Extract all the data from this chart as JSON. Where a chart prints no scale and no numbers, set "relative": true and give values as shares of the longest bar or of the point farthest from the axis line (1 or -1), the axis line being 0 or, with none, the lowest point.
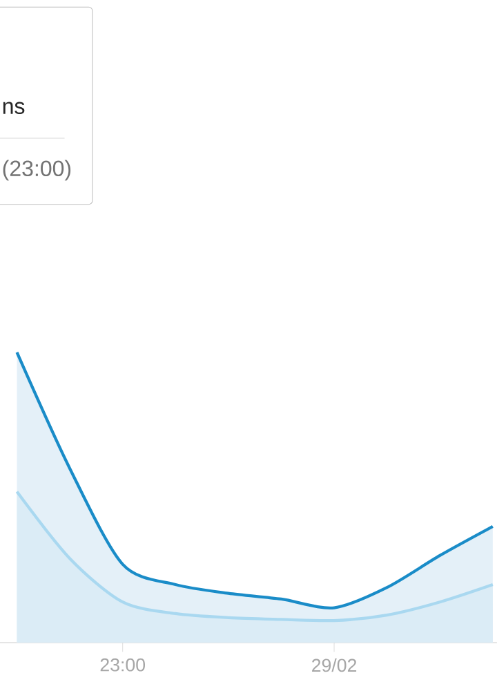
{
  "chart_data": {
    "type": "area",
    "relative": true,
    "categories": [
      null,
      null,
      "23:00",
      null,
      null,
      null,
      "29/02",
      null,
      null,
      null
    ],
    "series": [
      {
        "color": "#1a8cc8",
        "values": [
          1.0,
          0.6,
          0.27,
          0.2,
          0.17,
          0.15,
          0.12,
          0.19,
          0.3,
          0.4
        ]
      },
      {
        "color": "#a9d8f0",
        "values": [
          0.52,
          0.29,
          0.14,
          0.1,
          0.086,
          0.08,
          0.076,
          0.095,
          0.14,
          0.2
        ]
      }
    ],
    "annotations": [
      "ns",
      "(23:00)"
    ]
  }
}
